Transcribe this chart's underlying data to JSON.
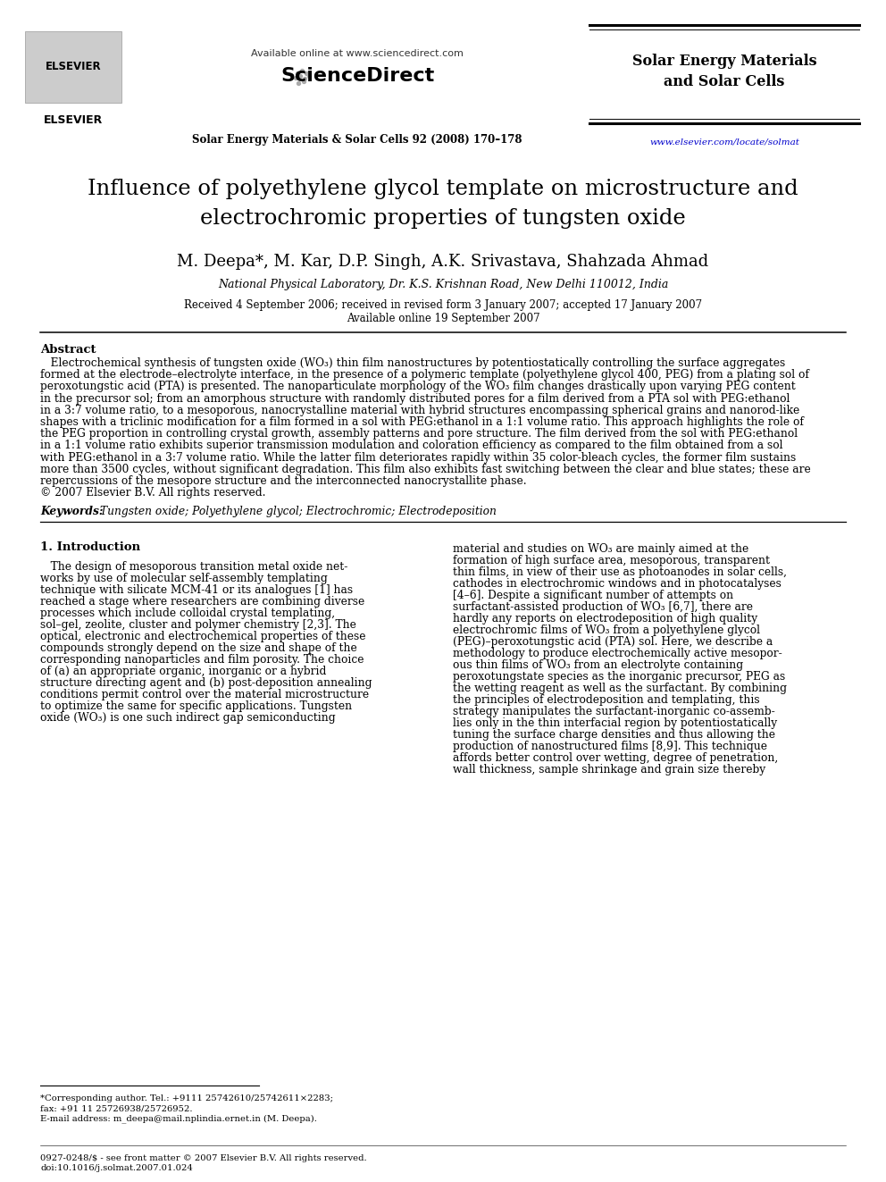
{
  "bg_color": "#ffffff",
  "header": {
    "available_online": "Available online at www.sciencedirect.com",
    "journal_name_right": "Solar Energy Materials\nand Solar Cells",
    "journal_citation": "Solar Energy Materials & Solar Cells 92 (2008) 170–178",
    "url": "www.elsevier.com/locate/solmat"
  },
  "title_line1": "Influence of polyethylene glycol template on microstructure and",
  "title_line2": "electrochromic properties of tungsten oxide",
  "authors": "M. Deepa*, M. Kar, D.P. Singh, A.K. Srivastava, Shahzada Ahmad",
  "affiliation": "National Physical Laboratory, Dr. K.S. Krishnan Road, New Delhi 110012, India",
  "received_line1": "Received 4 September 2006; received in revised form 3 January 2007; accepted 17 January 2007",
  "received_line2": "Available online 19 September 2007",
  "abstract_label": "Abstract",
  "keywords_label": "Keywords:",
  "keywords_text": "Tungsten oxide; Polyethylene glycol; Electrochromic; Electrodeposition",
  "section1_label": "1. Introduction",
  "abstract_lines": [
    "   Electrochemical synthesis of tungsten oxide (WO₃) thin film nanostructures by potentiostatically controlling the surface aggregates",
    "formed at the electrode–electrolyte interface, in the presence of a polymeric template (polyethylene glycol 400, PEG) from a plating sol of",
    "peroxotungstic acid (PTA) is presented. The nanoparticulate morphology of the WO₃ film changes drastically upon varying PEG content",
    "in the precursor sol; from an amorphous structure with randomly distributed pores for a film derived from a PTA sol with PEG:ethanol",
    "in a 3:7 volume ratio, to a mesoporous, nanocrystalline material with hybrid structures encompassing spherical grains and nanorod-like",
    "shapes with a triclinic modification for a film formed in a sol with PEG:ethanol in a 1:1 volume ratio. This approach highlights the role of",
    "the PEG proportion in controlling crystal growth, assembly patterns and pore structure. The film derived from the sol with PEG:ethanol",
    "in a 1:1 volume ratio exhibits superior transmission modulation and coloration efficiency as compared to the film obtained from a sol",
    "with PEG:ethanol in a 3:7 volume ratio. While the latter film deteriorates rapidly within 35 color-bleach cycles, the former film sustains",
    "more than 3500 cycles, without significant degradation. This film also exhibits fast switching between the clear and blue states; these are",
    "repercussions of the mesopore structure and the interconnected nanocrystallite phase.",
    "© 2007 Elsevier B.V. All rights reserved."
  ],
  "intro_col1_lines": [
    "   The design of mesoporous transition metal oxide net-",
    "works by use of molecular self-assembly templating",
    "technique with silicate MCM-41 or its analogues [1] has",
    "reached a stage where researchers are combining diverse",
    "processes which include colloidal crystal templating,",
    "sol–gel, zeolite, cluster and polymer chemistry [2,3]. The",
    "optical, electronic and electrochemical properties of these",
    "compounds strongly depend on the size and shape of the",
    "corresponding nanoparticles and film porosity. The choice",
    "of (a) an appropriate organic, inorganic or a hybrid",
    "structure directing agent and (b) post-deposition annealing",
    "conditions permit control over the material microstructure",
    "to optimize the same for specific applications. Tungsten",
    "oxide (WO₃) is one such indirect gap semiconducting"
  ],
  "intro_col2_lines": [
    "material and studies on WO₃ are mainly aimed at the",
    "formation of high surface area, mesoporous, transparent",
    "thin films, in view of their use as photoanodes in solar cells,",
    "cathodes in electrochromic windows and in photocatalyses",
    "[4–6]. Despite a significant number of attempts on",
    "surfactant-assisted production of WO₃ [6,7], there are",
    "hardly any reports on electrodeposition of high quality",
    "electrochromic films of WO₃ from a polyethylene glycol",
    "(PEG)–peroxotungstic acid (PTA) sol. Here, we describe a",
    "methodology to produce electrochemically active mesopor-",
    "ous thin films of WO₃ from an electrolyte containing",
    "peroxotungstate species as the inorganic precursor, PEG as",
    "the wetting reagent as well as the surfactant. By combining",
    "the principles of electrodeposition and templating, this",
    "strategy manipulates the surfactant-inorganic co-assemb-",
    "lies only in the thin interfacial region by potentiostatically",
    "tuning the surface charge densities and thus allowing the",
    "production of nanostructured films [8,9]. This technique",
    "affords better control over wetting, degree of penetration,",
    "wall thickness, sample shrinkage and grain size thereby"
  ],
  "footnote_line1": "*Corresponding author. Tel.: +9111 25742610/25742611×2283;",
  "footnote_line2": "fax: +91 11 25726938/25726952.",
  "footnote_line3": "E-mail address: m_deepa@mail.nplindia.ernet.in (M. Deepa).",
  "bottom_line1": "0927-0248/$ - see front matter © 2007 Elsevier B.V. All rights reserved.",
  "bottom_line2": "doi:10.1016/j.solmat.2007.01.024"
}
